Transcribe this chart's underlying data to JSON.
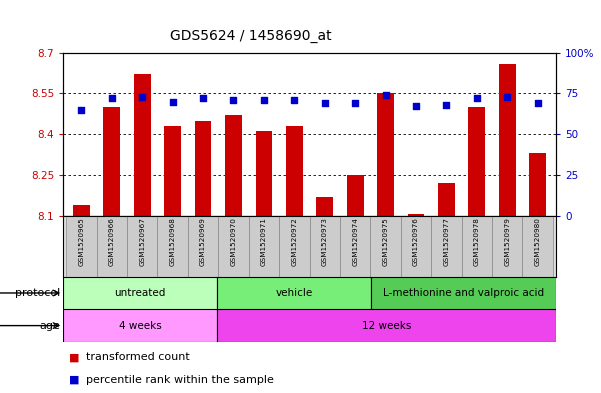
{
  "title": "GDS5624 / 1458690_at",
  "samples": [
    "GSM1520965",
    "GSM1520966",
    "GSM1520967",
    "GSM1520968",
    "GSM1520969",
    "GSM1520970",
    "GSM1520971",
    "GSM1520972",
    "GSM1520973",
    "GSM1520974",
    "GSM1520975",
    "GSM1520976",
    "GSM1520977",
    "GSM1520978",
    "GSM1520979",
    "GSM1520980"
  ],
  "transformed_count": [
    8.14,
    8.5,
    8.62,
    8.43,
    8.45,
    8.47,
    8.41,
    8.43,
    8.17,
    8.25,
    8.55,
    8.105,
    8.22,
    8.5,
    8.66,
    8.33
  ],
  "percentile_rank": [
    65,
    72,
    73,
    70,
    72,
    71,
    71,
    71,
    69,
    69,
    74,
    67,
    68,
    72,
    73,
    69
  ],
  "ylim_left": [
    8.1,
    8.7
  ],
  "ylim_right": [
    0,
    100
  ],
  "yticks_left": [
    8.1,
    8.25,
    8.4,
    8.55,
    8.7
  ],
  "yticks_right": [
    0,
    25,
    50,
    75,
    100
  ],
  "ytick_labels_left": [
    "8.1",
    "8.25",
    "8.4",
    "8.55",
    "8.7"
  ],
  "ytick_labels_right": [
    "0",
    "25",
    "50",
    "75",
    "100%"
  ],
  "bar_color": "#cc0000",
  "dot_color": "#0000cc",
  "bg_color": "#ffffff",
  "protocol_colors": [
    "#bbffbb",
    "#77ee77",
    "#55cc55"
  ],
  "age_colors": [
    "#ff99ff",
    "#ee44ee"
  ],
  "protocol_groups": [
    {
      "label": "untreated",
      "start": 0,
      "end": 5
    },
    {
      "label": "vehicle",
      "start": 5,
      "end": 10
    },
    {
      "label": "L-methionine and valproic acid",
      "start": 10,
      "end": 16
    }
  ],
  "age_groups": [
    {
      "label": "4 weeks",
      "start": 0,
      "end": 5
    },
    {
      "label": "12 weeks",
      "start": 5,
      "end": 16
    }
  ],
  "legend_items": [
    {
      "color": "#cc0000",
      "label": "transformed count"
    },
    {
      "color": "#0000cc",
      "label": "percentile rank within the sample"
    }
  ]
}
